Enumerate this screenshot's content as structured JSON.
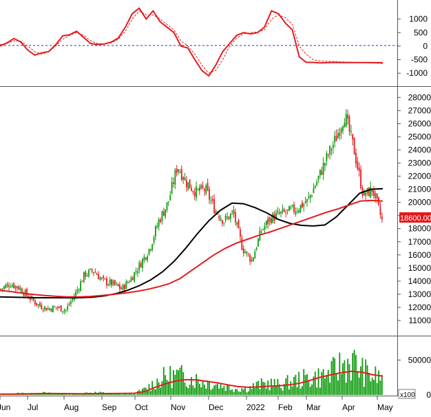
{
  "chart_data": [
    {
      "panel": "oscillator",
      "type": "line",
      "y_ticks": [
        "1000",
        "500",
        "0",
        "-500",
        "-1000"
      ],
      "ylim": [
        -1300,
        1550
      ],
      "zero_line": true,
      "series": [
        {
          "color": "#e41a1c",
          "style": "solid",
          "x": [
            0,
            10,
            20,
            30,
            40,
            50,
            60,
            70,
            80,
            90,
            100,
            110,
            120,
            130,
            140,
            150,
            160,
            170,
            180,
            190,
            200,
            210,
            220,
            230,
            240,
            250,
            260,
            270,
            280,
            290,
            300,
            310,
            320,
            330,
            340,
            350,
            360,
            370,
            380,
            390,
            400,
            410,
            420,
            430,
            440,
            450,
            460,
            470,
            480,
            490,
            500,
            510,
            520,
            530,
            540,
            550
          ],
          "values": [
            0,
            120,
            280,
            150,
            -150,
            -330,
            -250,
            -200,
            50,
            380,
            420,
            550,
            320,
            100,
            60,
            80,
            150,
            300,
            700,
            1200,
            1400,
            1000,
            1300,
            900,
            700,
            500,
            0,
            -70,
            -500,
            -900,
            -1100,
            -700,
            -200,
            100,
            400,
            500,
            450,
            500,
            700,
            1300,
            1200,
            850,
            600,
            -400,
            -600,
            -600,
            -620,
            -610,
            -600,
            -605,
            -606,
            -607,
            -608,
            -609,
            -610,
            -611
          ]
        },
        {
          "color": "#e41a1c",
          "style": "dashed",
          "x": [
            0,
            10,
            20,
            30,
            40,
            50,
            60,
            70,
            80,
            90,
            100,
            110,
            120,
            130,
            140,
            150,
            160,
            170,
            180,
            190,
            200,
            210,
            220,
            230,
            240,
            250,
            260,
            270,
            280,
            290,
            300,
            310,
            320,
            330,
            340,
            350,
            360,
            370,
            380,
            390,
            400,
            410,
            420,
            430,
            440,
            450,
            460,
            470,
            480,
            490,
            500,
            510,
            520,
            530,
            540,
            550
          ],
          "values": [
            50,
            100,
            200,
            180,
            0,
            -200,
            -300,
            -200,
            0,
            250,
            400,
            500,
            400,
            200,
            100,
            80,
            120,
            250,
            550,
            1000,
            1300,
            1150,
            1150,
            1000,
            800,
            600,
            200,
            0,
            -300,
            -700,
            -1000,
            -900,
            -500,
            0,
            300,
            450,
            500,
            520,
            600,
            1000,
            1150,
            1050,
            800,
            0,
            -300,
            -500,
            -550,
            -560,
            -570,
            -580,
            -590,
            -600,
            -610,
            -620,
            -630,
            -640
          ]
        }
      ]
    },
    {
      "panel": "price",
      "type": "candlestick",
      "y_ticks": [
        "28000",
        "27000",
        "26000",
        "25000",
        "24000",
        "23000",
        "22000",
        "21000",
        "20000",
        "19000",
        "18000",
        "17000",
        "16000",
        "15000",
        "14000",
        "13000",
        "12000",
        "11000"
      ],
      "ylim": [
        10000,
        28600
      ],
      "last_price_label": "18600.00",
      "ohlc_anchor_closes": [
        13400,
        13800,
        13500,
        12800,
        12200,
        11900,
        12000,
        11800,
        13000,
        14500,
        14800,
        14000,
        13800,
        13400,
        14200,
        15300,
        16500,
        18600,
        20000,
        22800,
        21500,
        20800,
        21000,
        19500,
        18600,
        19200,
        16500,
        15600,
        17800,
        18800,
        19100,
        19300,
        19600,
        20100,
        21600,
        23300,
        24800,
        26700,
        24000,
        20500,
        21000,
        18600
      ],
      "moving_averages": [
        {
          "color": "#000000",
          "values": [
            12800,
            12780,
            12760,
            12740,
            12730,
            12730,
            12730,
            12740,
            12780,
            12880,
            13050,
            13300,
            13650,
            14100,
            14700,
            15500,
            16500,
            17600,
            18600,
            19400,
            19950,
            19900,
            19600,
            19200,
            18700,
            18400,
            18250,
            18200,
            18280,
            18900,
            19800,
            20700,
            21000,
            21050
          ]
        },
        {
          "color": "#e41a1c",
          "values": [
            13300,
            13200,
            13080,
            12980,
            12900,
            12840,
            12800,
            12800,
            12830,
            12900,
            12980,
            13080,
            13200,
            13350,
            13550,
            13800,
            14200,
            14800,
            15400,
            16000,
            16500,
            16900,
            17200,
            17500,
            17750,
            18050,
            18350,
            18650,
            18950,
            19250,
            19500,
            19800,
            20100,
            20150,
            20100
          ]
        }
      ]
    },
    {
      "panel": "volume",
      "type": "bar",
      "y_ticks": [
        "50000",
        "0"
      ],
      "multiplier_label": "x100",
      "ylim": [
        0,
        80000
      ],
      "bar_color": "#0a9a0a",
      "average_color": "#e41a1c",
      "volume_anchors": [
        800,
        1500,
        2500,
        1800,
        3000,
        2000,
        1800,
        1200,
        2500,
        3500,
        2800,
        1500,
        1200,
        2000,
        8000,
        18000,
        26000,
        28000,
        26000,
        22000,
        18000,
        16000,
        12000,
        9000,
        10000,
        14000,
        17000,
        14000,
        18000,
        22000,
        24000,
        26000,
        30000,
        42000,
        48000,
        35000,
        27000,
        25000
      ],
      "average_values": [
        1200,
        1300,
        1500,
        1800,
        2000,
        2100,
        2000,
        1900,
        1800,
        1900,
        2000,
        2100,
        2200,
        2500,
        5000,
        11000,
        16000,
        20000,
        22000,
        21500,
        19500,
        17500,
        14500,
        12000,
        11000,
        11500,
        12500,
        13000,
        14500,
        17000,
        21000,
        25500,
        29000,
        32000,
        34000,
        32500,
        29000,
        27000
      ]
    }
  ],
  "x_tick_labels": [
    "Jun",
    "Jul",
    "Aug",
    "Sep",
    "Oct",
    "Nov",
    "Dec",
    "2022",
    "Feb",
    "Mar",
    "Apr",
    "May"
  ]
}
